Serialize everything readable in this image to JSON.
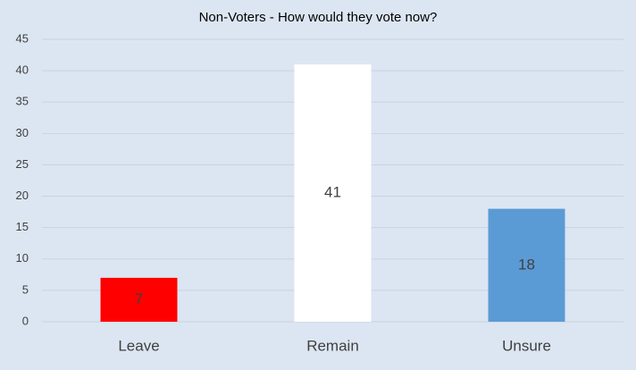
{
  "chart_data": {
    "type": "bar",
    "title": "Non-Voters - How would they vote now?",
    "categories": [
      "Leave",
      "Remain",
      "Unsure"
    ],
    "values": [
      7,
      41,
      18
    ],
    "colors": [
      "#ff0000",
      "#ffffff",
      "#5b9bd5"
    ],
    "ylim": [
      0,
      45
    ],
    "yticks": [
      0,
      5,
      10,
      15,
      20,
      25,
      30,
      35,
      40,
      45
    ],
    "grid": true
  }
}
